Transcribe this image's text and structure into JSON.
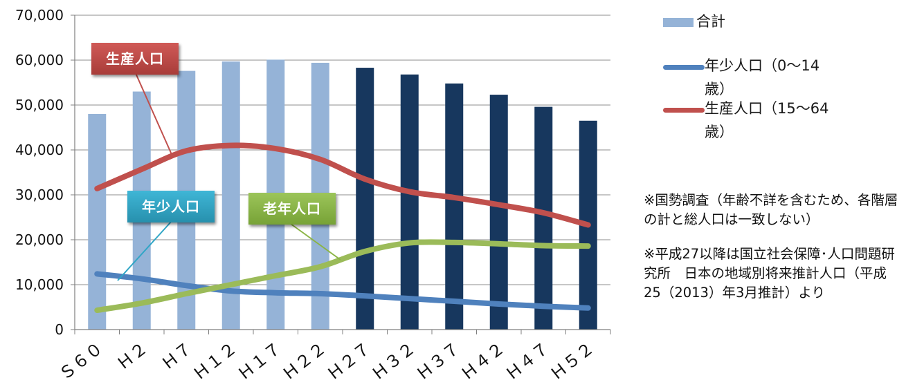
{
  "chart_data": {
    "type": "bar",
    "categories": [
      "Ｓ６０",
      "Ｈ２",
      "Ｈ７",
      "Ｈ１２",
      "Ｈ１７",
      "Ｈ２２",
      "Ｈ２７",
      "Ｈ３２",
      "Ｈ３７",
      "Ｈ４２",
      "Ｈ４７",
      "Ｈ５２"
    ],
    "ylim": [
      0,
      70000
    ],
    "yticks": [
      "0",
      "10,000",
      "20,000",
      "30,000",
      "40,000",
      "50,000",
      "60,000",
      "70,000"
    ],
    "grid": true,
    "legend_position": "right",
    "bars": {
      "name": "合計",
      "values": [
        48000,
        53000,
        57600,
        59700,
        60100,
        59400,
        58300,
        56800,
        54800,
        52300,
        49600,
        46500
      ],
      "color_actual": "#95b3d7",
      "color_projected": "#17375e",
      "projected_from_index": 6
    },
    "series": [
      {
        "name": "年少人口（0～14歳）",
        "values": [
          12400,
          11300,
          9800,
          8600,
          8200,
          8000,
          7500,
          6900,
          6300,
          5700,
          5200,
          4800
        ],
        "color": "#4f81bd"
      },
      {
        "name": "生産人口（15～64歳）",
        "values": [
          31400,
          35700,
          39800,
          41000,
          40300,
          37900,
          33500,
          30700,
          29400,
          27800,
          26000,
          23300
        ],
        "color": "#c0504d"
      },
      {
        "name": "老年人口",
        "values": [
          4300,
          5900,
          8000,
          10000,
          12000,
          14000,
          17400,
          19300,
          19400,
          19100,
          18700,
          18600
        ],
        "color": "#9bbb59"
      }
    ],
    "callouts": [
      {
        "label": "生産人口",
        "color": "#c0504d",
        "series": 1
      },
      {
        "label": "年少人口",
        "color": "#31a6c6",
        "series": 0
      },
      {
        "label": "老年人口",
        "color": "#8bb445",
        "series": 2
      }
    ]
  },
  "legend": {
    "items": [
      {
        "label": "合計",
        "kind": "bar",
        "color": "#95b3d7"
      },
      {
        "label": "年少人口（0～14歳）",
        "kind": "line",
        "color": "#4f81bd"
      },
      {
        "label": "生産人口（15～64歳）",
        "kind": "line",
        "color": "#c0504d"
      }
    ]
  },
  "notes": [
    "※国勢調査（年齢不詳を含むため、各階層の計と総人口は一致しない）",
    "※平成27以降は国立社会保障･人口問題研究所　日本の地域別将来推計人口（平成25（2013）年3月推計）より"
  ]
}
